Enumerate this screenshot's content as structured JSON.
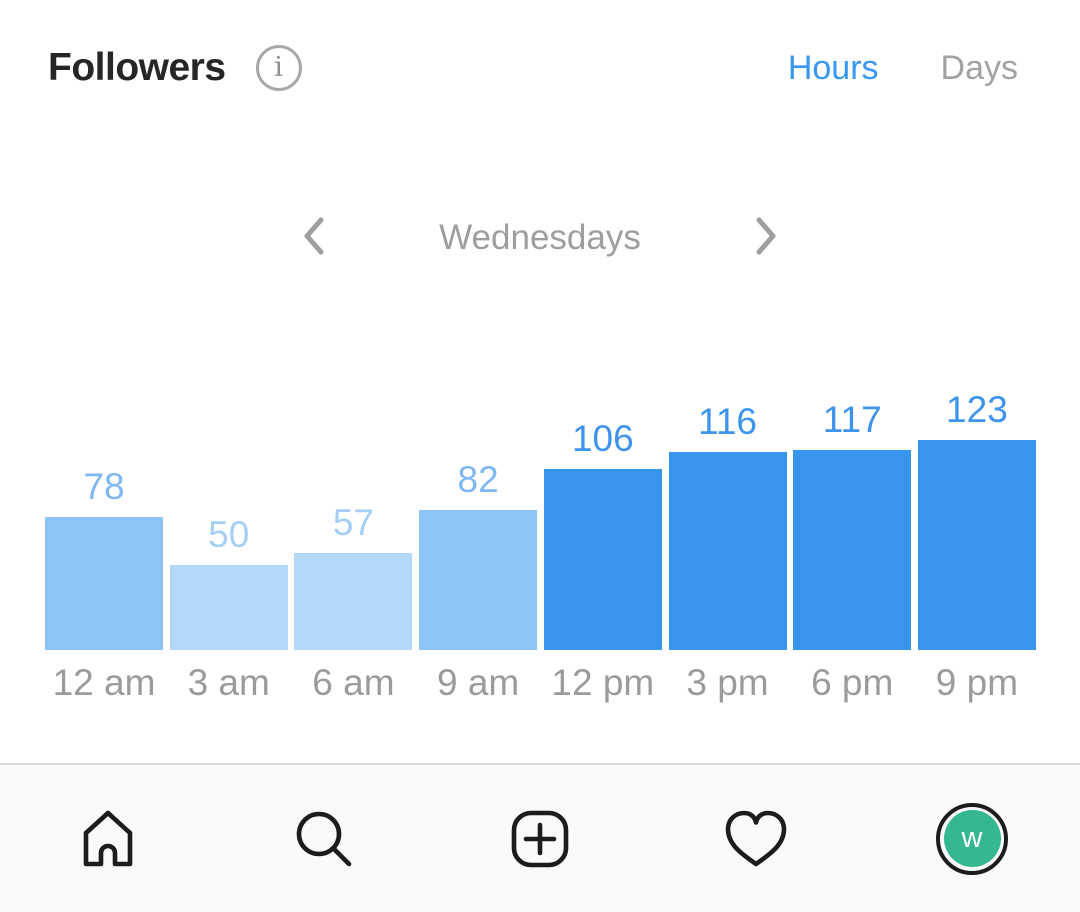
{
  "header": {
    "title": "Followers",
    "info_icon": "info-icon",
    "tabs": [
      {
        "label": "Hours",
        "active": true
      },
      {
        "label": "Days",
        "active": false
      }
    ]
  },
  "period": {
    "label": "Wednesdays",
    "prev_icon": "chevron-left-icon",
    "next_icon": "chevron-right-icon"
  },
  "chart_data": {
    "type": "bar",
    "title": "Followers",
    "subtitle": "Wednesdays",
    "categories": [
      "12 am",
      "3 am",
      "6 am",
      "9 am",
      "12 pm",
      "3 pm",
      "6 pm",
      "9 pm"
    ],
    "values": [
      78,
      50,
      57,
      82,
      106,
      116,
      117,
      123
    ],
    "xlabel": "",
    "ylabel": "",
    "ylim": [
      0,
      123
    ],
    "grid": false,
    "legend": "none",
    "bar_colors": [
      "#8dc3f7",
      "#b4d8fa",
      "#b4d8fa",
      "#8dc3f7",
      "#3795ed",
      "#3795ed",
      "#3795ed",
      "#3795ed"
    ],
    "label_colors": [
      "#7fb7f3",
      "#a6cff8",
      "#a6cff8",
      "#7fb7f3",
      "#3e94ec",
      "#3e94ec",
      "#3e94ec",
      "#3e94ec"
    ]
  },
  "nav": {
    "items": [
      {
        "name": "home"
      },
      {
        "name": "search"
      },
      {
        "name": "new-post"
      },
      {
        "name": "activity"
      },
      {
        "name": "profile"
      }
    ]
  },
  "profile": {
    "initial": "w",
    "avatar_color": "#35b78f"
  },
  "colors": {
    "tab_active": "#3897f0",
    "tab_inactive": "#a2a2a2",
    "title_text": "#262626",
    "period_text": "#9e9e9e",
    "axis_text": "#9b9b9b",
    "nav_icon": "#1c1c1c",
    "nav_bg": "#fafafa"
  }
}
